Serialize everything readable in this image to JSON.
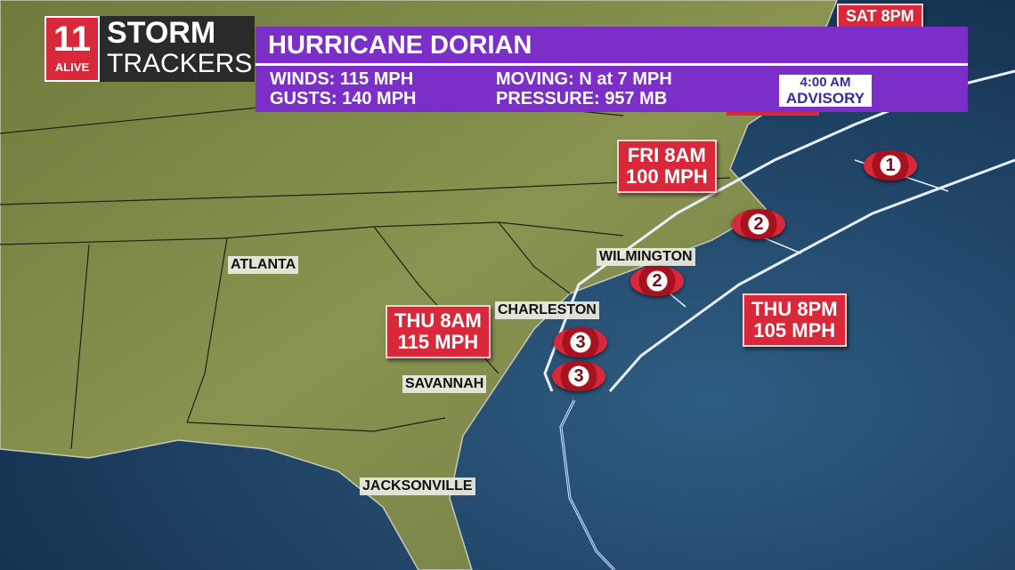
{
  "logo": {
    "channel": "11",
    "station": "ALIVE",
    "line1": "STORM",
    "line2": "TRACKERS"
  },
  "banner": {
    "title": "HURRICANE DORIAN",
    "winds": "WINDS: 115 MPH",
    "gusts": "GUSTS: 140 MPH",
    "moving": "MOVING: N at 7 MPH",
    "pressure": "PRESSURE: 957 MB",
    "advisory_time": "4:00 AM",
    "advisory": "ADVISORY"
  },
  "forecast_points": [
    {
      "time": "SAT 8PM"
    },
    {
      "time": "FRI 8AM",
      "wind": "100 MPH"
    },
    {
      "time": "THU 8AM",
      "wind": "115 MPH"
    },
    {
      "time": "THU 8PM",
      "wind": "105 MPH"
    }
  ],
  "cities": [
    "ATLANTA",
    "WILMINGTON",
    "CHARLESTON",
    "SAVANNAH",
    "JACKSONVILLE"
  ],
  "storm_icons": [
    "3",
    "3",
    "2",
    "2",
    "1"
  ]
}
